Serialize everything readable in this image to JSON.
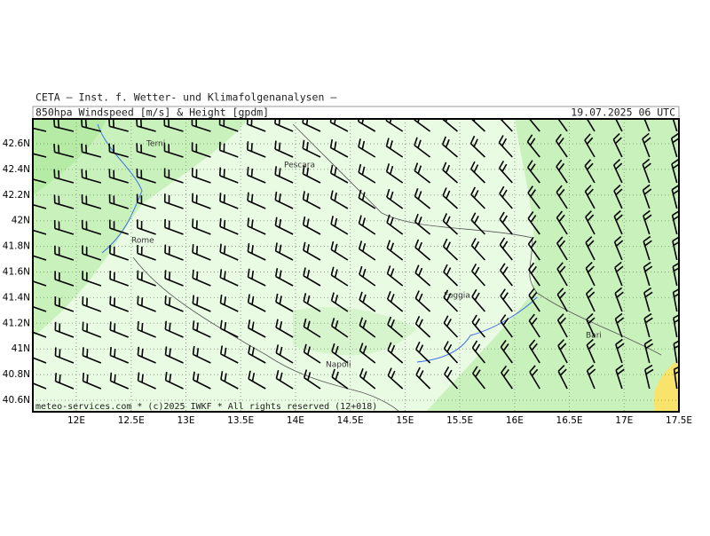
{
  "header": {
    "institute": "CETA – Inst. f. Wetter- und Klimafolgenanalysen –",
    "product": "850hpa_Windspeed_[m/s]_&_Height_[gpdm]",
    "valid_time": "19.07.2025 06 UTC"
  },
  "axes": {
    "lat": [
      "42.6N",
      "42.4N",
      "42.2N",
      "42N",
      "41.8N",
      "41.6N",
      "41.4N",
      "41.2N",
      "41N",
      "40.8N",
      "40.6N"
    ],
    "lon": [
      "12E",
      "12.5E",
      "13E",
      "13.5E",
      "14E",
      "14.5E",
      "15E",
      "15.5E",
      "16E",
      "16.5E",
      "17E",
      "17.5E"
    ]
  },
  "cities": [
    "Terni",
    "Pescara",
    "Rome",
    "Foggia",
    "Bari",
    "Napoli"
  ],
  "footer": "meteo-services.com * (c)2025 IWKF * All rights reserved (12+018)"
}
